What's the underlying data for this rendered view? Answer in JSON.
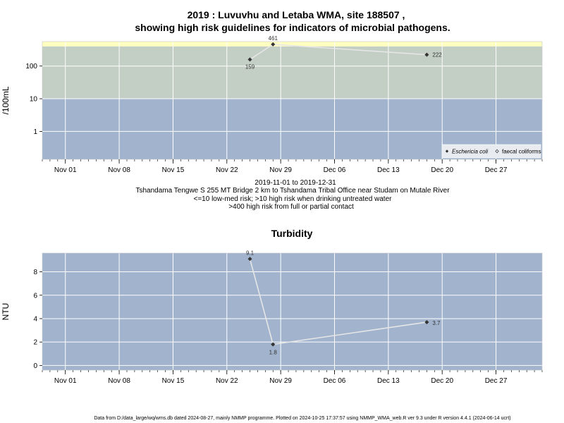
{
  "title_line1": "2019 : Luvuvhu and Letaba WMA, site 188507 ,",
  "title_line2": "showing high risk guidelines for indicators of microbial pathogens.",
  "info_lines": [
    "2019-11-01 to 2019-12-31",
    "Tshandama Tengwe S 255 MT Bridge 2 km to Tshandama Tribal Office near Studam on Mutale River",
    "<=10 low-med risk; >10 high risk when drinking untreated water",
    ">400 high risk from full or partial contact"
  ],
  "footer": "Data from D:/data_large/wq/wms.db dated 2024-08-27, mainly NMMP programme. Plotted on 2024-10-25 17:37:57 using NMMP_WMA_web.R ver 9.3 under R version 4.4.1 (2024-06-14 ucrt)",
  "colors": {
    "low_band": "#a1b3cd",
    "mid_band": "#c3cec4",
    "high_band": "#ffffc0",
    "grid": "#ffffff",
    "line": "#e6e6e6",
    "point": "#333333"
  },
  "chart_data": [
    {
      "type": "line",
      "title": "",
      "ylabel": "/100mL",
      "yscale": "log",
      "ylim": [
        0.14,
        560
      ],
      "xlim": [
        "2019-10-29",
        "2020-01-02"
      ],
      "x_ticks": [
        "Nov 01",
        "Nov 08",
        "Nov 15",
        "Nov 22",
        "Nov 29",
        "Dec 06",
        "Dec 13",
        "Dec 20",
        "Dec 27"
      ],
      "x_tick_dates": [
        "2019-11-01",
        "2019-11-08",
        "2019-11-15",
        "2019-11-22",
        "2019-11-29",
        "2019-12-06",
        "2019-12-13",
        "2019-12-20",
        "2019-12-27"
      ],
      "y_ticks": [
        1,
        10,
        100
      ],
      "y_tick_labels": [
        "1",
        "10",
        "100"
      ],
      "risk_bands": [
        {
          "from": 0.14,
          "to": 10,
          "color": "#a1b3cd"
        },
        {
          "from": 10,
          "to": 400,
          "color": "#c3cec4"
        },
        {
          "from": 400,
          "to": 560,
          "color": "#ffffc0"
        }
      ],
      "series": [
        {
          "name": "Eschericia coli",
          "x": [
            "2019-11-25",
            "2019-11-28",
            "2019-12-18"
          ],
          "y": [
            159,
            461,
            222
          ],
          "labels": [
            "159",
            "461",
            "222"
          ]
        }
      ],
      "legend": {
        "position": "bottom-right",
        "entries": [
          "Eschericia coli",
          "faecal coliforms"
        ]
      }
    },
    {
      "type": "line",
      "title": "Turbidity",
      "ylabel": "NTU",
      "yscale": "linear",
      "ylim": [
        -0.4,
        9.6
      ],
      "xlim": [
        "2019-10-29",
        "2020-01-02"
      ],
      "x_ticks": [
        "Nov 01",
        "Nov 08",
        "Nov 15",
        "Nov 22",
        "Nov 29",
        "Dec 06",
        "Dec 13",
        "Dec 20",
        "Dec 27"
      ],
      "x_tick_dates": [
        "2019-11-01",
        "2019-11-08",
        "2019-11-15",
        "2019-11-22",
        "2019-11-29",
        "2019-12-06",
        "2019-12-13",
        "2019-12-20",
        "2019-12-27"
      ],
      "y_ticks": [
        0,
        2,
        4,
        6,
        8
      ],
      "y_tick_labels": [
        "0",
        "2",
        "4",
        "6",
        "8"
      ],
      "series": [
        {
          "x": [
            "2019-11-25",
            "2019-11-28",
            "2019-12-18"
          ],
          "y": [
            9.1,
            1.8,
            3.7
          ],
          "labels": [
            "9.1",
            "1.8",
            "3.7"
          ]
        }
      ]
    }
  ]
}
